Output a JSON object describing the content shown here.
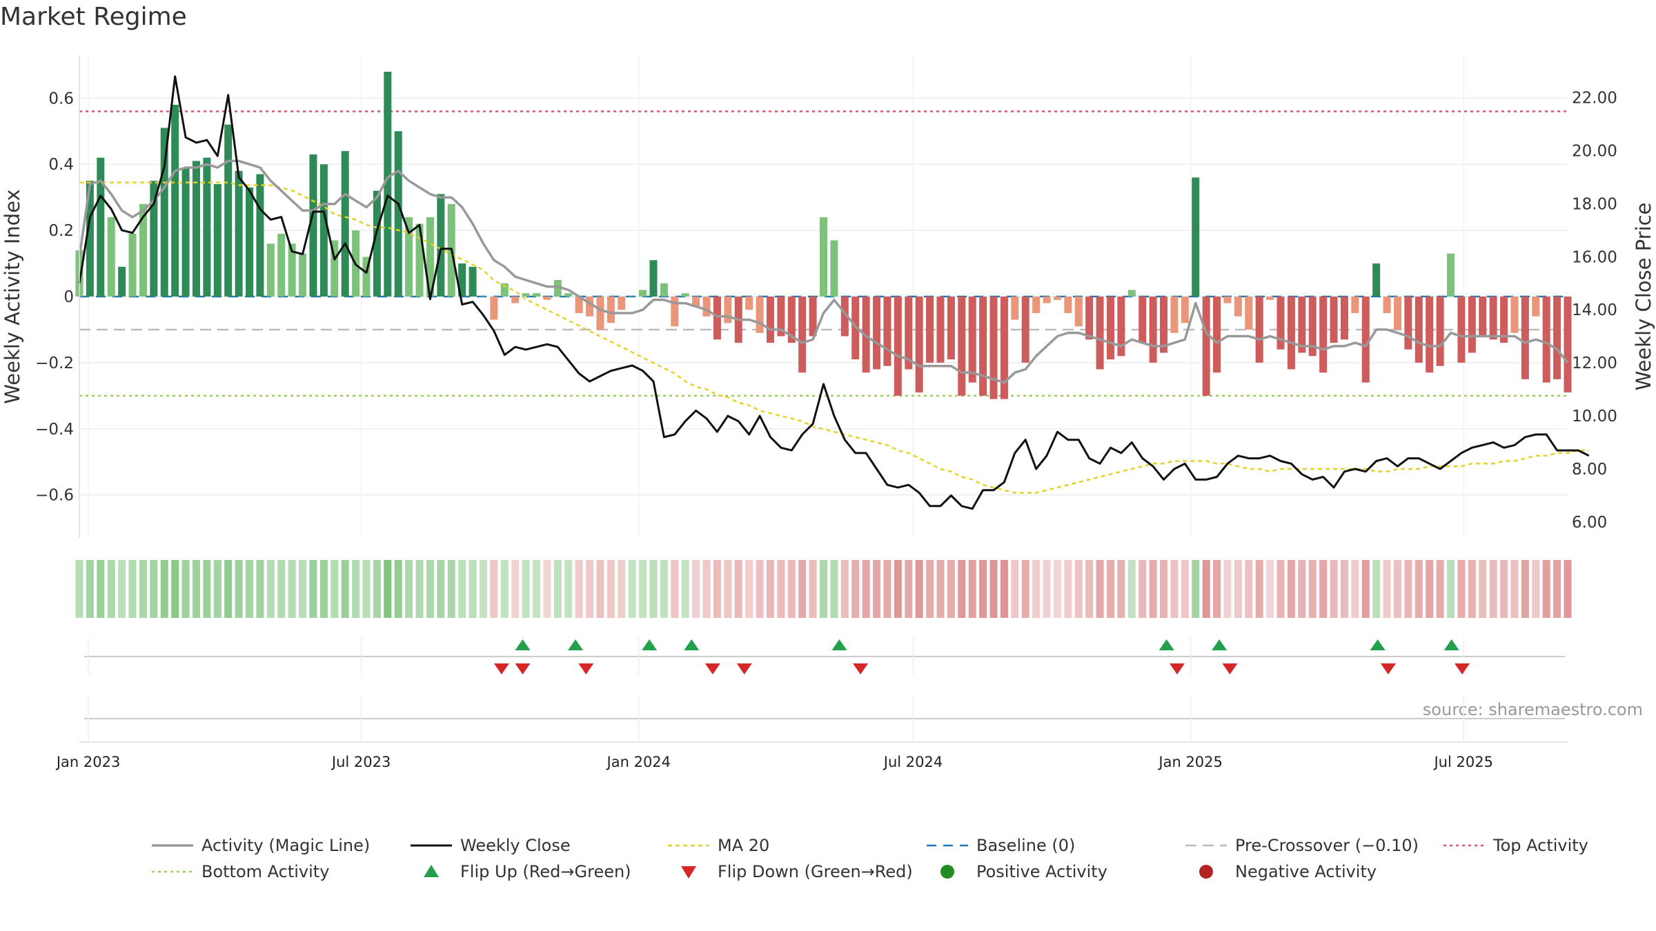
{
  "title": "Market Regime",
  "source": "source: sharemaestro.com",
  "colors": {
    "pos_strong": "#2e8b57",
    "pos_weak": "#7cc27a",
    "neg_strong": "#cd5c5c",
    "neg_weak": "#e9967a",
    "magic": "#999999",
    "close": "#111111",
    "ma": "#e6d227",
    "baseline": "#1f77b4",
    "pre": "#bbbbbb",
    "top": "#d9536a",
    "bottom": "#9acd5a",
    "flip_up": "#22a04b",
    "flip_down": "#d62728",
    "pos_dot": "#228b22",
    "neg_dot": "#b22222"
  },
  "chart_data": {
    "type": "bar",
    "title": "Market Regime",
    "ylabel": "Weekly Activity Index",
    "y2label": "Weekly Close Price",
    "ylim": [
      -0.73,
      0.73
    ],
    "y2lim": [
      5.4,
      23.6
    ],
    "yticks": [
      0.6,
      0.4,
      0.2,
      0,
      -0.2,
      -0.4,
      -0.6
    ],
    "ytick_labels": [
      "0.6",
      "0.4",
      "0.2",
      "0",
      "−0.2",
      "−0.4",
      "−0.6"
    ],
    "y2ticks": [
      22,
      20,
      18,
      16,
      14,
      12,
      10,
      8,
      6
    ],
    "y2tick_labels": [
      "22.00",
      "20.00",
      "18.00",
      "16.00",
      "14.00",
      "12.00",
      "10.00",
      "8.00",
      "6.00"
    ],
    "x_start": "2022-12-26",
    "x_end": "2025-09-08",
    "xticks": [
      "2023-01-01",
      "2023-07-01",
      "2024-01-01",
      "2024-07-01",
      "2025-01-01",
      "2025-07-01"
    ],
    "xtick_labels": [
      "Jan 2023",
      "Jul 2023",
      "Jan 2024",
      "Jul 2024",
      "Jan 2025",
      "Jul 2025"
    ],
    "x": [
      "2022-12-26",
      "2025-09-08"
    ],
    "activity": [
      0.14,
      0.35,
      0.42,
      0.24,
      0.09,
      0.19,
      0.28,
      0.35,
      0.51,
      0.58,
      0.39,
      0.41,
      0.42,
      0.34,
      0.52,
      0.38,
      0.33,
      0.37,
      0.16,
      0.19,
      0.16,
      0.13,
      0.43,
      0.4,
      0.17,
      0.44,
      0.2,
      0.12,
      0.32,
      0.68,
      0.5,
      0.24,
      0.22,
      0.24,
      0.31,
      0.28,
      0.1,
      0.09,
      0.0,
      -0.07,
      0.04,
      -0.02,
      0.01,
      0.01,
      -0.01,
      0.05,
      0.01,
      -0.05,
      -0.06,
      -0.1,
      -0.08,
      -0.04,
      0.0,
      0.02,
      0.11,
      0.04,
      -0.09,
      0.01,
      -0.03,
      -0.06,
      -0.13,
      -0.08,
      -0.14,
      -0.04,
      -0.11,
      -0.14,
      -0.12,
      -0.14,
      -0.23,
      -0.12,
      0.24,
      0.17,
      -0.12,
      -0.19,
      -0.23,
      -0.22,
      -0.21,
      -0.3,
      -0.22,
      -0.29,
      -0.2,
      -0.2,
      -0.19,
      -0.3,
      -0.26,
      -0.3,
      -0.31,
      -0.31,
      -0.07,
      -0.2,
      -0.05,
      -0.02,
      -0.01,
      -0.05,
      -0.09,
      -0.13,
      -0.22,
      -0.19,
      -0.18,
      0.02,
      -0.14,
      -0.2,
      -0.17,
      -0.11,
      -0.08,
      0.36,
      -0.3,
      -0.23,
      -0.02,
      -0.06,
      -0.1,
      -0.2,
      -0.01,
      -0.16,
      -0.22,
      -0.17,
      -0.18,
      -0.23,
      -0.14,
      -0.13,
      -0.05,
      -0.26,
      0.1,
      -0.05,
      -0.1,
      -0.16,
      -0.2,
      -0.23,
      -0.21,
      0.13,
      -0.2,
      -0.17,
      -0.12,
      -0.13,
      -0.14,
      -0.11,
      -0.25,
      -0.06,
      -0.26,
      -0.25,
      -0.29
    ],
    "magic_line": [
      0.12,
      0.34,
      0.35,
      0.31,
      0.26,
      0.24,
      0.26,
      0.29,
      0.33,
      0.38,
      0.39,
      0.39,
      0.4,
      0.39,
      0.41,
      0.41,
      0.4,
      0.39,
      0.35,
      0.32,
      0.29,
      0.26,
      0.26,
      0.28,
      0.28,
      0.31,
      0.29,
      0.27,
      0.3,
      0.36,
      0.38,
      0.35,
      0.33,
      0.31,
      0.3,
      0.3,
      0.27,
      0.22,
      0.16,
      0.11,
      0.09,
      0.06,
      0.05,
      0.04,
      0.03,
      0.03,
      0.02,
      0.0,
      -0.02,
      -0.04,
      -0.05,
      -0.05,
      -0.05,
      -0.04,
      -0.01,
      -0.01,
      -0.02,
      -0.02,
      -0.03,
      -0.04,
      -0.06,
      -0.06,
      -0.07,
      -0.07,
      -0.08,
      -0.1,
      -0.1,
      -0.12,
      -0.14,
      -0.13,
      -0.05,
      -0.01,
      -0.05,
      -0.09,
      -0.12,
      -0.14,
      -0.16,
      -0.18,
      -0.19,
      -0.21,
      -0.21,
      -0.21,
      -0.21,
      -0.23,
      -0.23,
      -0.24,
      -0.25,
      -0.26,
      -0.23,
      -0.22,
      -0.18,
      -0.15,
      -0.12,
      -0.11,
      -0.11,
      -0.12,
      -0.13,
      -0.14,
      -0.15,
      -0.13,
      -0.14,
      -0.15,
      -0.15,
      -0.14,
      -0.13,
      -0.02,
      -0.11,
      -0.14,
      -0.12,
      -0.12,
      -0.12,
      -0.13,
      -0.12,
      -0.13,
      -0.14,
      -0.15,
      -0.15,
      -0.16,
      -0.15,
      -0.15,
      -0.14,
      -0.15,
      -0.1,
      -0.1,
      -0.11,
      -0.12,
      -0.14,
      -0.15,
      -0.15,
      -0.11,
      -0.12,
      -0.12,
      -0.12,
      -0.12,
      -0.12,
      -0.12,
      -0.14,
      -0.13,
      -0.14,
      -0.16,
      -0.2
    ],
    "weekly_close": [
      15.0,
      17.5,
      18.3,
      17.8,
      17.0,
      16.9,
      17.5,
      18.0,
      19.4,
      22.8,
      20.5,
      20.3,
      20.4,
      19.8,
      22.1,
      19.0,
      18.5,
      17.8,
      17.4,
      17.5,
      16.2,
      16.1,
      17.7,
      17.7,
      15.9,
      16.5,
      15.7,
      15.4,
      17.0,
      18.3,
      18.0,
      16.9,
      17.2,
      14.4,
      16.3,
      16.3,
      14.2,
      14.3,
      13.8,
      13.2,
      12.3,
      12.6,
      12.5,
      12.6,
      12.7,
      12.6,
      12.1,
      11.6,
      11.3,
      11.5,
      11.7,
      11.8,
      11.9,
      11.7,
      11.3,
      9.2,
      9.3,
      9.8,
      10.2,
      9.9,
      9.4,
      10.0,
      9.8,
      9.3,
      10.0,
      9.2,
      8.8,
      8.7,
      9.3,
      9.7,
      11.2,
      10.0,
      9.1,
      8.6,
      8.6,
      8.0,
      7.4,
      7.3,
      7.4,
      7.1,
      6.6,
      6.6,
      7.0,
      6.6,
      6.5,
      7.2,
      7.2,
      7.5,
      8.6,
      9.1,
      8.0,
      8.5,
      9.4,
      9.1,
      9.1,
      8.4,
      8.2,
      8.8,
      8.6,
      9.0,
      8.4,
      8.1,
      7.6,
      8.0,
      8.2,
      7.6,
      7.6,
      7.7,
      8.2,
      8.5,
      8.4,
      8.4,
      8.5,
      8.3,
      8.2,
      7.8,
      7.6,
      7.7,
      7.3,
      7.9,
      8.0,
      7.9,
      8.3,
      8.4,
      8.1,
      8.4,
      8.4,
      8.2,
      8.0,
      8.3,
      8.6,
      8.8,
      8.9,
      9.0,
      8.8,
      8.9,
      9.2,
      9.3,
      9.3,
      8.7,
      8.7,
      8.7,
      8.5
    ],
    "ma20": [
      18.8,
      18.8,
      18.8,
      18.8,
      18.8,
      18.8,
      18.8,
      18.8,
      18.8,
      18.8,
      18.8,
      18.8,
      18.8,
      18.8,
      18.8,
      18.7,
      18.7,
      18.7,
      18.7,
      18.6,
      18.5,
      18.3,
      18.1,
      17.9,
      17.6,
      17.5,
      17.4,
      17.2,
      17.1,
      17.1,
      17.0,
      16.9,
      16.7,
      16.5,
      16.3,
      16.1,
      15.9,
      15.7,
      15.5,
      15.1,
      14.9,
      14.7,
      14.4,
      14.2,
      14.0,
      13.8,
      13.6,
      13.4,
      13.2,
      13.0,
      12.8,
      12.6,
      12.4,
      12.2,
      12.0,
      11.8,
      11.6,
      11.3,
      11.1,
      11.0,
      10.8,
      10.7,
      10.5,
      10.4,
      10.2,
      10.1,
      10.0,
      9.9,
      9.8,
      9.6,
      9.5,
      9.4,
      9.3,
      9.2,
      9.1,
      9.0,
      8.9,
      8.7,
      8.6,
      8.4,
      8.2,
      8.0,
      7.9,
      7.7,
      7.6,
      7.4,
      7.3,
      7.2,
      7.1,
      7.1,
      7.1,
      7.2,
      7.3,
      7.4,
      7.5,
      7.6,
      7.7,
      7.8,
      7.9,
      8.0,
      8.1,
      8.2,
      8.2,
      8.3,
      8.3,
      8.3,
      8.3,
      8.2,
      8.2,
      8.1,
      8.0,
      8.0,
      7.9,
      8.0,
      8.0,
      8.0,
      8.0,
      8.0,
      8.0,
      8.0,
      8.0,
      8.0,
      7.9,
      7.9,
      8.0,
      8.0,
      8.0,
      8.1,
      8.1,
      8.1,
      8.1,
      8.2,
      8.2,
      8.2,
      8.3,
      8.3,
      8.4,
      8.5,
      8.5,
      8.6,
      8.6,
      8.7,
      8.7
    ],
    "baseline": 0,
    "pre_crossover": -0.1,
    "top_activity": 0.56,
    "bottom_activity": -0.3,
    "flip_up": [
      "2023-10-16",
      "2023-11-20",
      "2024-01-08",
      "2024-02-05",
      "2024-05-13",
      "2024-12-16",
      "2025-01-20",
      "2025-05-05",
      "2025-06-23"
    ],
    "flip_down": [
      "2023-10-02",
      "2023-10-16",
      "2023-11-27",
      "2024-02-19",
      "2024-03-11",
      "2024-05-27",
      "2024-12-23",
      "2025-01-27",
      "2025-05-12",
      "2025-06-30"
    ],
    "legend": [
      {
        "label": "Activity (Magic Line)",
        "style": "magic"
      },
      {
        "label": "Weekly Close",
        "style": "close"
      },
      {
        "label": "MA 20",
        "style": "ma"
      },
      {
        "label": "Baseline (0)",
        "style": "baseline"
      },
      {
        "label": "Pre-Crossover (−0.10)",
        "style": "pre"
      },
      {
        "label": "Top Activity",
        "style": "top"
      },
      {
        "label": "Bottom Activity",
        "style": "bottom"
      },
      {
        "label": "Flip Up (Red→Green)",
        "style": "flip_up"
      },
      {
        "label": "Flip Down (Green→Red)",
        "style": "flip_down"
      },
      {
        "label": "Positive Activity",
        "style": "pos_dot"
      },
      {
        "label": "Negative Activity",
        "style": "neg_dot"
      }
    ],
    "legend_position": "bottom"
  }
}
